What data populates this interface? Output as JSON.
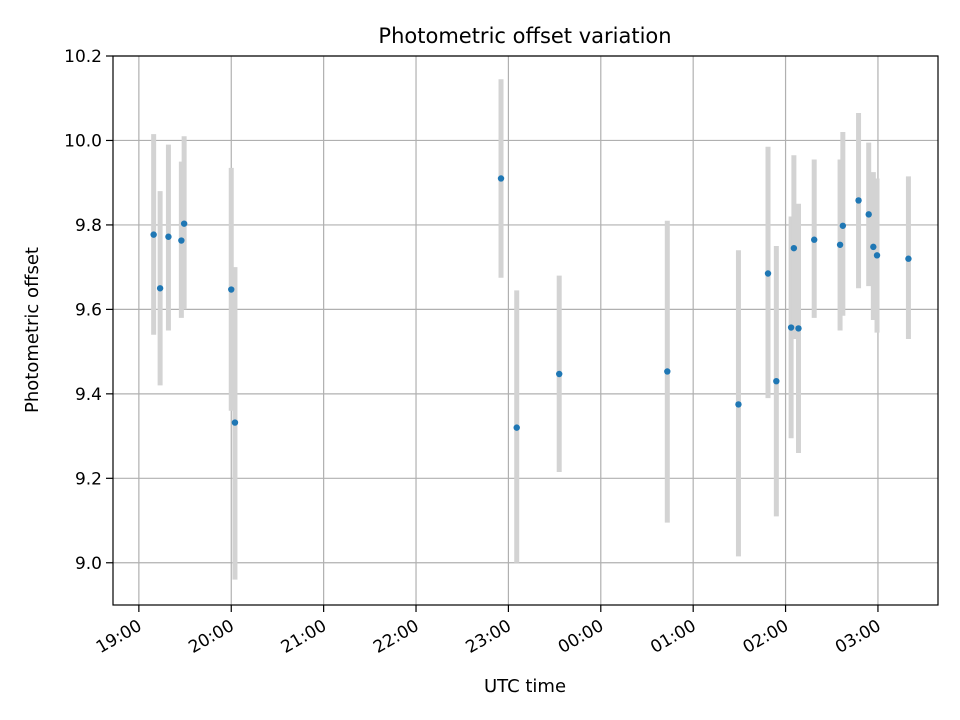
{
  "chart_data": {
    "type": "scatter",
    "title": "Photometric offset variation",
    "xlabel": "UTC time",
    "ylabel": "Photometric offset",
    "x_unit": "hours",
    "xlim": [
      -0.28,
      8.65
    ],
    "ylim": [
      8.9,
      10.2
    ],
    "x_ticks": [
      {
        "value": 0,
        "label": "19:00"
      },
      {
        "value": 1,
        "label": "20:00"
      },
      {
        "value": 2,
        "label": "21:00"
      },
      {
        "value": 3,
        "label": "22:00"
      },
      {
        "value": 4,
        "label": "23:00"
      },
      {
        "value": 5,
        "label": "00:00"
      },
      {
        "value": 6,
        "label": "01:00"
      },
      {
        "value": 7,
        "label": "02:00"
      },
      {
        "value": 8,
        "label": "03:00"
      }
    ],
    "y_ticks": [
      {
        "value": 9.0,
        "label": "9.0"
      },
      {
        "value": 9.2,
        "label": "9.2"
      },
      {
        "value": 9.4,
        "label": "9.4"
      },
      {
        "value": 9.6,
        "label": "9.6"
      },
      {
        "value": 9.8,
        "label": "9.8"
      },
      {
        "value": 10.0,
        "label": "10.0"
      },
      {
        "value": 10.2,
        "label": "10.2"
      }
    ],
    "grid": true,
    "marker_color": "#1f77b4",
    "errorbar_color": "#d3d3d3",
    "points": [
      {
        "x": 0.16,
        "y": 9.777,
        "lo": 9.54,
        "hi": 10.015
      },
      {
        "x": 0.23,
        "y": 9.65,
        "lo": 9.42,
        "hi": 9.88
      },
      {
        "x": 0.32,
        "y": 9.772,
        "lo": 9.55,
        "hi": 9.99
      },
      {
        "x": 0.46,
        "y": 9.763,
        "lo": 9.58,
        "hi": 9.95
      },
      {
        "x": 0.49,
        "y": 9.803,
        "lo": 9.6,
        "hi": 10.01
      },
      {
        "x": 1.0,
        "y": 9.647,
        "lo": 9.36,
        "hi": 9.935
      },
      {
        "x": 1.04,
        "y": 9.332,
        "lo": 8.96,
        "hi": 9.7
      },
      {
        "x": 3.92,
        "y": 9.91,
        "lo": 9.675,
        "hi": 10.145
      },
      {
        "x": 4.09,
        "y": 9.32,
        "lo": 9.0,
        "hi": 9.645
      },
      {
        "x": 4.55,
        "y": 9.447,
        "lo": 9.215,
        "hi": 9.68
      },
      {
        "x": 5.72,
        "y": 9.453,
        "lo": 9.095,
        "hi": 9.81
      },
      {
        "x": 6.49,
        "y": 9.375,
        "lo": 9.015,
        "hi": 9.74
      },
      {
        "x": 6.81,
        "y": 9.685,
        "lo": 9.39,
        "hi": 9.985
      },
      {
        "x": 6.9,
        "y": 9.43,
        "lo": 9.11,
        "hi": 9.75
      },
      {
        "x": 7.06,
        "y": 9.557,
        "lo": 9.295,
        "hi": 9.82
      },
      {
        "x": 7.09,
        "y": 9.745,
        "lo": 9.53,
        "hi": 9.965
      },
      {
        "x": 7.14,
        "y": 9.555,
        "lo": 9.26,
        "hi": 9.85
      },
      {
        "x": 7.31,
        "y": 9.765,
        "lo": 9.58,
        "hi": 9.955
      },
      {
        "x": 7.59,
        "y": 9.753,
        "lo": 9.55,
        "hi": 9.955
      },
      {
        "x": 7.62,
        "y": 9.798,
        "lo": 9.585,
        "hi": 10.02
      },
      {
        "x": 7.79,
        "y": 9.858,
        "lo": 9.65,
        "hi": 10.065
      },
      {
        "x": 7.9,
        "y": 9.825,
        "lo": 9.655,
        "hi": 9.995
      },
      {
        "x": 7.95,
        "y": 9.748,
        "lo": 9.575,
        "hi": 9.925
      },
      {
        "x": 7.99,
        "y": 9.728,
        "lo": 9.545,
        "hi": 9.91
      },
      {
        "x": 8.33,
        "y": 9.72,
        "lo": 9.53,
        "hi": 9.915
      }
    ]
  }
}
